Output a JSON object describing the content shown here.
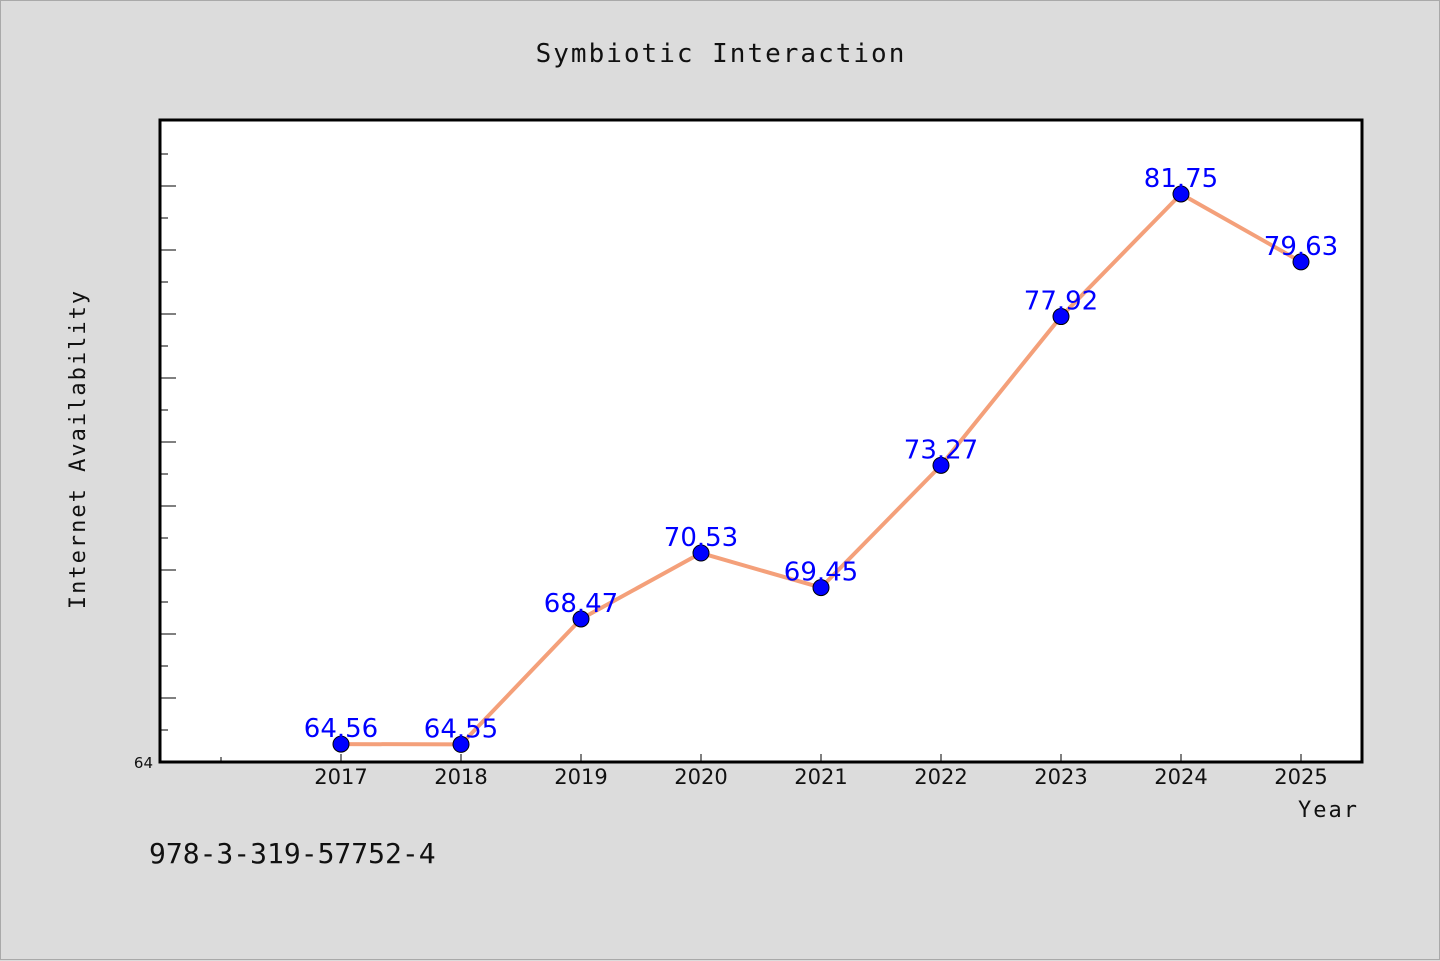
{
  "chart_data": {
    "type": "line",
    "title": "Symbiotic Interaction",
    "xlabel": "Year",
    "ylabel": "Internet Availability",
    "categories": [
      "2017",
      "2018",
      "2019",
      "2020",
      "2021",
      "2022",
      "2023",
      "2024",
      "2025"
    ],
    "series": [
      {
        "values": [
          64.56,
          64.55,
          68.47,
          70.53,
          69.45,
          73.27,
          77.92,
          81.75,
          79.63
        ],
        "labels": [
          "64.56",
          "64.55",
          "68.47",
          "70.53",
          "69.45",
          "73.27",
          "77.92",
          "81.75",
          "79.63"
        ],
        "line_color": "#f4a07a",
        "marker_color": "#0000ff"
      }
    ],
    "ylim": [
      64,
      84
    ],
    "ytick_labels": [
      "64"
    ],
    "grid": false,
    "background_color": "#ffffff",
    "page_color": "#dcdcdc"
  },
  "footnote": "978-3-319-57752-4"
}
